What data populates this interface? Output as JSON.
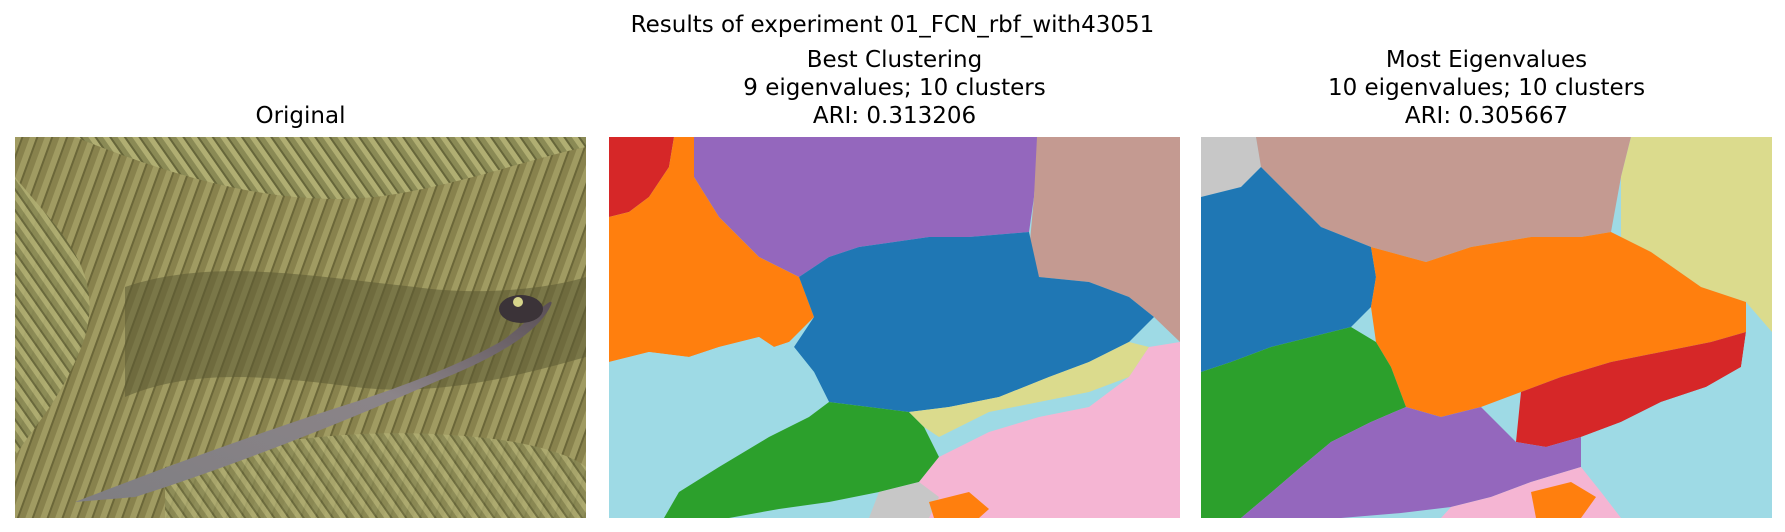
{
  "figure": {
    "suptitle": "Results of experiment 01_FCN_rbf_with43051"
  },
  "panels": [
    {
      "lines": [
        "Original"
      ]
    },
    {
      "lines": [
        "Best Clustering",
        "9 eigenvalues; 10 clusters",
        "ARI: 0.313206"
      ]
    },
    {
      "lines": [
        "Most Eigenvalues",
        "10 eigenvalues; 10 clusters",
        "ARI: 0.305667"
      ]
    }
  ],
  "palette": {
    "blue": "#1f77b4",
    "orange": "#ff7f0e",
    "green": "#2ca02c",
    "red": "#d62728",
    "purple": "#9467bd",
    "brown": "#c49a91",
    "pink": "#f5b5d3",
    "gray": "#c7c7c7",
    "olive": "#dbdb8d",
    "cyan": "#9edae5"
  }
}
